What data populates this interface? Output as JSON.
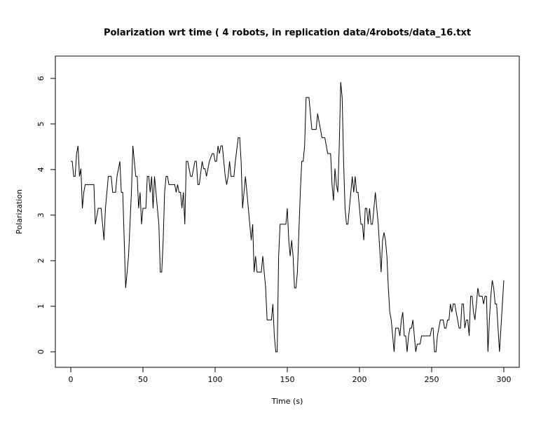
{
  "chart_data": {
    "type": "line",
    "title": "Polarization wrt time ( 4 robots, in replication  data/4robots/data_16.txt",
    "x_label": "Time (s)",
    "y_label": "Polarization",
    "color": "#000000",
    "x": [
      0,
      1,
      2,
      3,
      4,
      5,
      6,
      7,
      8,
      9,
      10,
      16,
      17,
      19,
      21,
      23,
      24,
      26,
      28,
      29,
      31,
      32,
      34,
      35,
      36,
      38,
      40,
      42,
      43,
      45,
      46,
      47,
      48,
      49,
      50,
      52,
      53,
      54,
      55,
      56,
      57,
      58,
      60,
      61,
      62,
      63,
      64,
      65,
      66,
      67,
      68,
      72,
      73,
      74,
      75,
      76,
      77,
      78,
      79,
      80,
      81,
      83,
      84,
      86,
      87,
      88,
      89,
      91,
      92,
      93,
      94,
      96,
      98,
      99,
      100,
      101,
      102,
      103,
      104,
      105,
      106,
      107,
      108,
      109,
      110,
      111,
      113,
      114,
      116,
      117,
      118,
      119,
      120,
      121,
      122,
      124,
      125,
      126,
      127,
      128,
      129,
      132,
      133,
      134,
      135,
      136,
      139,
      140,
      141,
      142,
      143,
      144,
      145,
      149,
      150,
      151,
      152,
      153,
      154,
      155,
      156,
      157,
      159,
      160,
      161,
      162,
      163,
      165,
      166,
      167,
      170,
      171,
      172,
      174,
      176,
      177,
      178,
      180,
      181,
      182,
      183,
      184,
      185,
      186,
      187,
      188,
      189,
      190,
      191,
      192,
      193,
      195,
      196,
      197,
      198,
      199,
      200,
      201,
      202,
      203,
      204,
      205,
      206,
      207,
      208,
      209,
      210,
      211,
      212,
      213,
      215,
      216,
      217,
      218,
      219,
      220,
      221,
      222,
      223,
      224,
      225,
      227,
      228,
      229,
      230,
      231,
      232,
      233,
      234,
      235,
      236,
      237,
      238,
      239,
      240,
      242,
      243,
      249,
      250,
      251,
      252,
      253,
      254,
      255,
      256,
      258,
      259,
      260,
      261,
      262,
      263,
      264,
      265,
      266,
      267,
      268,
      269,
      270,
      271,
      272,
      273,
      274,
      275,
      276,
      277,
      278,
      279,
      280,
      281,
      282,
      283,
      285,
      286,
      287,
      288,
      289,
      290,
      291,
      292,
      293,
      294,
      295,
      296,
      297,
      298,
      299,
      300
    ],
    "values": [
      4.18,
      4.18,
      3.85,
      3.85,
      4.35,
      4.52,
      3.85,
      4.02,
      3.15,
      3.5,
      3.67,
      3.67,
      2.8,
      3.15,
      3.15,
      2.45,
      3.15,
      3.85,
      3.85,
      3.5,
      3.5,
      3.85,
      4.18,
      3.5,
      3.5,
      1.4,
      2.1,
      3.5,
      4.52,
      3.85,
      3.85,
      3.15,
      3.5,
      2.8,
      3.15,
      3.15,
      3.85,
      3.85,
      3.5,
      3.85,
      3.15,
      3.85,
      3.15,
      2.8,
      1.75,
      1.75,
      2.45,
      3.5,
      3.85,
      3.85,
      3.67,
      3.67,
      3.5,
      3.67,
      3.5,
      3.5,
      3.15,
      3.5,
      2.8,
      4.18,
      4.18,
      3.85,
      3.85,
      4.18,
      4.18,
      3.67,
      3.67,
      4.18,
      4.02,
      4.02,
      3.85,
      4.18,
      4.35,
      4.35,
      4.18,
      4.18,
      4.52,
      4.35,
      4.52,
      4.52,
      4.18,
      3.85,
      3.67,
      3.85,
      4.18,
      3.85,
      3.85,
      4.18,
      4.7,
      4.7,
      4.18,
      3.15,
      3.5,
      3.85,
      3.5,
      2.8,
      2.45,
      2.8,
      1.75,
      2.1,
      1.75,
      1.75,
      2.1,
      1.75,
      1.4,
      0.7,
      0.7,
      1.05,
      0.35,
      0,
      0,
      2.1,
      2.8,
      2.8,
      3.15,
      2.45,
      2.1,
      2.45,
      2.1,
      1.4,
      1.4,
      1.75,
      3.5,
      4.18,
      4.18,
      4.52,
      5.58,
      5.58,
      5.23,
      4.88,
      4.88,
      5.23,
      5.05,
      4.7,
      4.7,
      4.52,
      4.35,
      4.35,
      3.67,
      3.32,
      4.02,
      3.67,
      3.5,
      4.52,
      5.92,
      5.58,
      4.18,
      3.15,
      2.8,
      2.8,
      3.15,
      3.85,
      3.5,
      3.85,
      3.5,
      3.5,
      3.15,
      2.8,
      2.8,
      2.45,
      3.15,
      3.15,
      2.8,
      3.15,
      2.8,
      2.8,
      3.15,
      3.5,
      3.15,
      2.8,
      1.75,
      2.45,
      2.62,
      2.45,
      2.1,
      1.4,
      0.87,
      0.7,
      0.35,
      0,
      0.52,
      0.52,
      0.35,
      0.7,
      0.87,
      0.35,
      0.35,
      0,
      0.35,
      0.52,
      0.52,
      0.7,
      0.35,
      0,
      0.17,
      0.17,
      0.35,
      0.35,
      0.52,
      0.52,
      0,
      0,
      0.35,
      0.52,
      0.7,
      0.7,
      0.52,
      0.52,
      0.7,
      0.7,
      1.05,
      0.87,
      1.05,
      1.05,
      0.87,
      0.7,
      0.52,
      0.52,
      1.05,
      1.05,
      0.52,
      0.7,
      0.7,
      0.35,
      1.22,
      1.22,
      0.87,
      0.7,
      1.05,
      1.4,
      1.22,
      1.22,
      1.05,
      1.22,
      1.22,
      0,
      0.7,
      1.22,
      1.57,
      1.4,
      1.05,
      1.05,
      0.52,
      0,
      0.52,
      1.05,
      1.57
    ],
    "xlim": [
      -10.7,
      310.7
    ],
    "ylim": [
      -0.34,
      6.49
    ],
    "xticks": [
      0,
      50,
      100,
      150,
      200,
      250,
      300
    ],
    "yticks": [
      0,
      1,
      2,
      3,
      4,
      5,
      6
    ]
  }
}
